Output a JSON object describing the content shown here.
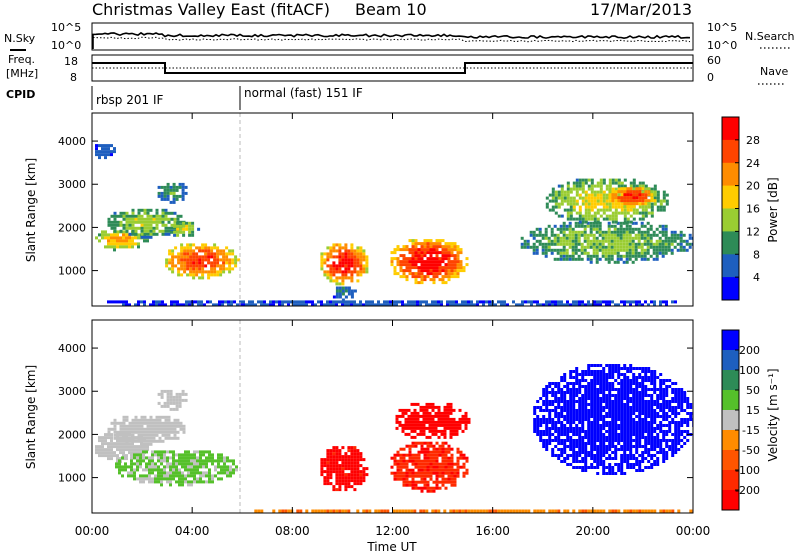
{
  "header": {
    "title": "Christmas Valley East (fitACF)",
    "beam": "Beam 10",
    "date": "17/Mar/2013"
  },
  "top_panels": {
    "nsky_label": "N.Sky",
    "nsearch_label": "N.Search",
    "nsky_ticks": [
      "10^5",
      "10^0"
    ],
    "nsearch_ticks": [
      "10^5",
      "10^0"
    ],
    "freq_label_1": "Freq.",
    "freq_label_2": "[MHz]",
    "freq_ticks": [
      "18",
      "8"
    ],
    "nave_ticks": [
      "60",
      "0"
    ],
    "nave_label": "Nave",
    "cpid_label": "CPID",
    "cpid_1": "rbsp 201 IF",
    "cpid_2": "normal (fast) 151 IF"
  },
  "colorbars": {
    "power": {
      "label": "Power [dB]",
      "ticks": [
        "28",
        "24",
        "20",
        "16",
        "12",
        "8",
        "4"
      ],
      "colors": [
        "#ff0000",
        "#ff4400",
        "#ff8c00",
        "#ffcc00",
        "#9acd32",
        "#2e8b57",
        "#1e5fbf",
        "#0000ff"
      ]
    },
    "velocity": {
      "label": "Velocity [m s⁻¹]",
      "ticks": [
        "200",
        "100",
        "50",
        "15",
        "-15",
        "-50",
        "-100",
        "-200"
      ],
      "colors": [
        "#0000ff",
        "#1e5fbf",
        "#2e8b57",
        "#55c02a",
        "#c0c0c0",
        "#ff8c00",
        "#ff5500",
        "#ff2a00",
        "#ff0000"
      ]
    }
  },
  "chart_data": [
    {
      "type": "heatmap",
      "name": "Power",
      "xlabel": "Time UT",
      "ylabel": "Slant Range [km]",
      "xlim": [
        0,
        24
      ],
      "ylim": [
        180,
        4650
      ],
      "x_ticks": [
        "00:00",
        "04:00",
        "08:00",
        "12:00",
        "16:00",
        "20:00",
        "00:00"
      ],
      "y_ticks": [
        1000,
        2000,
        3000,
        4000
      ],
      "clim": [
        0,
        32
      ],
      "regions": [
        {
          "t0": 0.0,
          "t1": 2.2,
          "r0": 1500,
          "r1": 2000,
          "v": 18
        },
        {
          "t0": 0.5,
          "t1": 3.7,
          "r0": 1800,
          "r1": 2500,
          "v": 13
        },
        {
          "t0": 2.5,
          "t1": 3.8,
          "r0": 2600,
          "r1": 3100,
          "v": 9
        },
        {
          "t0": 2.8,
          "t1": 5.8,
          "r0": 850,
          "r1": 1700,
          "v": 24
        },
        {
          "t0": 3.0,
          "t1": 4.2,
          "r0": 1800,
          "r1": 2200,
          "v": 14
        },
        {
          "t0": 0.0,
          "t1": 0.9,
          "r0": 3600,
          "r1": 4000,
          "v": 6
        },
        {
          "t0": 9.0,
          "t1": 11.0,
          "r0": 700,
          "r1": 1700,
          "v": 26
        },
        {
          "t0": 11.8,
          "t1": 15.0,
          "r0": 700,
          "r1": 1800,
          "v": 27
        },
        {
          "t0": 9.5,
          "t1": 10.5,
          "r0": 350,
          "r1": 700,
          "v": 7
        },
        {
          "t0": 17.0,
          "t1": 24.0,
          "r0": 1200,
          "r1": 2200,
          "v": 12
        },
        {
          "t0": 18.0,
          "t1": 23.0,
          "r0": 2100,
          "r1": 3200,
          "v": 15
        },
        {
          "t0": 20.5,
          "t1": 22.5,
          "r0": 2500,
          "r1": 3000,
          "v": 25
        },
        {
          "t0": 0.0,
          "t1": 24.0,
          "r0": 180,
          "r1": 380,
          "v": 5
        }
      ]
    },
    {
      "type": "heatmap",
      "name": "Velocity",
      "xlabel": "Time UT",
      "ylabel": "Slant Range [km]",
      "xlim": [
        0,
        24
      ],
      "ylim": [
        180,
        4650
      ],
      "x_ticks": [
        "00:00",
        "04:00",
        "08:00",
        "12:00",
        "16:00",
        "20:00",
        "00:00"
      ],
      "y_ticks": [
        1000,
        2000,
        3000,
        4000
      ],
      "clim": [
        -200,
        200
      ],
      "regions": [
        {
          "t0": 0.0,
          "t1": 2.2,
          "r0": 1400,
          "r1": 2100,
          "v": 0
        },
        {
          "t0": 0.5,
          "t1": 3.7,
          "r0": 1800,
          "r1": 2500,
          "v": 0
        },
        {
          "t0": 2.5,
          "t1": 3.8,
          "r0": 2600,
          "r1": 3100,
          "v": 0
        },
        {
          "t0": 0.8,
          "t1": 5.8,
          "r0": 850,
          "r1": 1700,
          "v": 30
        },
        {
          "t0": 9.0,
          "t1": 11.0,
          "r0": 700,
          "r1": 1800,
          "v": -170
        },
        {
          "t0": 11.8,
          "t1": 15.0,
          "r0": 700,
          "r1": 1900,
          "v": -150
        },
        {
          "t0": 12.0,
          "t1": 15.0,
          "r0": 1900,
          "r1": 2800,
          "v": -200
        },
        {
          "t0": 17.5,
          "t1": 24.0,
          "r0": 1100,
          "r1": 3700,
          "v": 200
        },
        {
          "t0": 6.0,
          "t1": 24.0,
          "r0": 180,
          "r1": 330,
          "v": -60
        }
      ]
    }
  ]
}
